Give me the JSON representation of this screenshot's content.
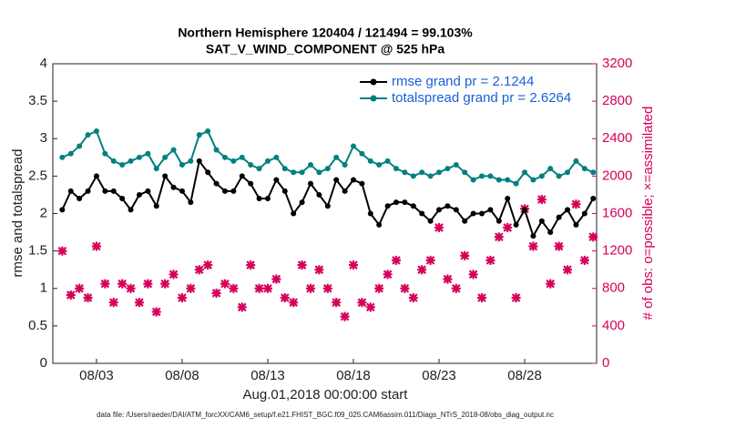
{
  "chart_data": {
    "type": "line",
    "title": "Northern Hemisphere 120404 / 121494 = 99.103%",
    "subtitle": "SAT_V_WIND_COMPONENT @ 525 hPa",
    "x_label": "Aug.01,2018 00:00:00 start",
    "y_label": "rmse and totalspread",
    "y2_label": "# of obs: o=possible; ×=assimilated",
    "footnote": "data file: /Users/raeder/DAI/ATM_forcXX/CAM6_setup/f.e21.FHIST_BGC.f09_025.CAM6assim.011/Diags_NTrS_2018-08/obs_diag_output.nc",
    "xlim": [
      -0.55,
      31.2
    ],
    "xticks": [
      {
        "value": 2,
        "label": "08/03"
      },
      {
        "value": 7,
        "label": "08/08"
      },
      {
        "value": 12,
        "label": "08/13"
      },
      {
        "value": 17,
        "label": "08/18"
      },
      {
        "value": 22,
        "label": "08/23"
      },
      {
        "value": 27,
        "label": "08/28"
      }
    ],
    "ylim": [
      0,
      4
    ],
    "yticks": [
      0,
      0.5,
      1,
      1.5,
      2,
      2.5,
      3,
      3.5,
      4
    ],
    "y2lim": [
      0,
      3200
    ],
    "y2ticks": [
      0,
      400,
      800,
      1200,
      1600,
      2000,
      2400,
      2800,
      3200
    ],
    "legend_position": "upper right",
    "x": [
      0,
      0.5,
      1,
      1.5,
      2,
      2.5,
      3,
      3.5,
      4,
      4.5,
      5,
      5.5,
      6,
      6.5,
      7,
      7.5,
      8,
      8.5,
      9,
      9.5,
      10,
      10.5,
      11,
      11.5,
      12,
      12.5,
      13,
      13.5,
      14,
      14.5,
      15,
      15.5,
      16,
      16.5,
      17,
      17.5,
      18,
      18.5,
      19,
      19.5,
      20,
      20.5,
      21,
      21.5,
      22,
      22.5,
      23,
      23.5,
      24,
      24.5,
      25,
      25.5,
      26,
      26.5,
      27,
      27.5,
      28,
      28.5,
      29,
      29.5,
      30,
      30.5,
      31
    ],
    "series": [
      {
        "name": "rmse grand pr = 2.1244",
        "color": "#000000",
        "values": [
          2.05,
          2.3,
          2.2,
          2.3,
          2.5,
          2.3,
          2.3,
          2.2,
          2.05,
          2.25,
          2.3,
          2.1,
          2.5,
          2.35,
          2.3,
          2.15,
          2.7,
          2.55,
          2.4,
          2.3,
          2.3,
          2.5,
          2.4,
          2.2,
          2.2,
          2.45,
          2.3,
          2.0,
          2.15,
          2.4,
          2.25,
          2.1,
          2.45,
          2.3,
          2.45,
          2.4,
          2.0,
          1.85,
          2.1,
          2.15,
          2.15,
          2.1,
          2.0,
          1.9,
          2.05,
          2.1,
          2.05,
          1.9,
          2.0,
          2.0,
          2.05,
          1.9,
          2.2,
          1.85,
          2.05,
          1.7,
          1.9,
          1.75,
          1.95,
          2.05,
          1.85,
          2.0,
          2.2
        ]
      },
      {
        "name": "totalspread grand pr = 2.6264",
        "color": "#008080",
        "values": [
          2.75,
          2.8,
          2.9,
          3.05,
          3.1,
          2.8,
          2.7,
          2.65,
          2.7,
          2.75,
          2.8,
          2.6,
          2.75,
          2.85,
          2.65,
          2.7,
          3.05,
          3.1,
          2.85,
          2.75,
          2.7,
          2.75,
          2.65,
          2.6,
          2.7,
          2.75,
          2.6,
          2.55,
          2.55,
          2.65,
          2.55,
          2.6,
          2.75,
          2.65,
          2.9,
          2.8,
          2.7,
          2.65,
          2.7,
          2.6,
          2.55,
          2.5,
          2.55,
          2.5,
          2.55,
          2.6,
          2.65,
          2.55,
          2.45,
          2.5,
          2.5,
          2.45,
          2.45,
          2.4,
          2.55,
          2.45,
          2.5,
          2.6,
          2.5,
          2.55,
          2.7,
          2.6,
          2.55
        ]
      }
    ],
    "obs_color": "#d6005a",
    "obs_counts": [
      1200,
      730,
      800,
      700,
      1250,
      850,
      650,
      850,
      800,
      650,
      850,
      550,
      850,
      950,
      700,
      800,
      1000,
      1050,
      750,
      850,
      800,
      600,
      1050,
      800,
      800,
      900,
      700,
      650,
      1050,
      800,
      1000,
      800,
      650,
      500,
      1050,
      650,
      600,
      800,
      950,
      1100,
      800,
      700,
      1000,
      1100,
      1450,
      900,
      800,
      1150,
      950,
      700,
      1100,
      1350,
      1450,
      700,
      1650,
      1250,
      1750,
      850,
      1250,
      1000,
      1700,
      1100,
      1350
    ]
  }
}
